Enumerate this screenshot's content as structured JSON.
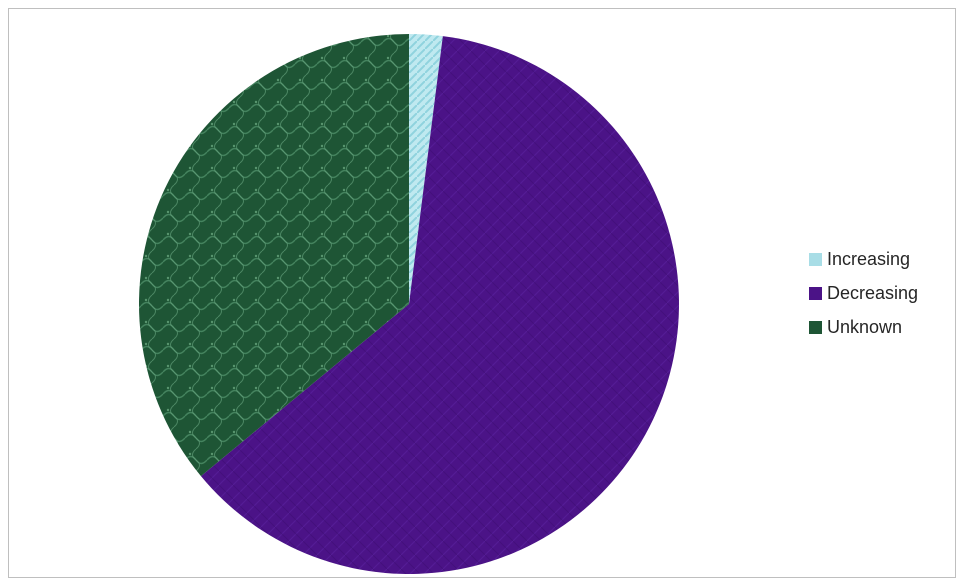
{
  "chart_data": {
    "type": "pie",
    "categories": [
      "Increasing",
      "Decreasing",
      "Unknown"
    ],
    "values": [
      2,
      62,
      36
    ],
    "colors": [
      "#a8dde6",
      "#4b1387",
      "#1e5535"
    ],
    "legend_position": "right",
    "title": ""
  }
}
